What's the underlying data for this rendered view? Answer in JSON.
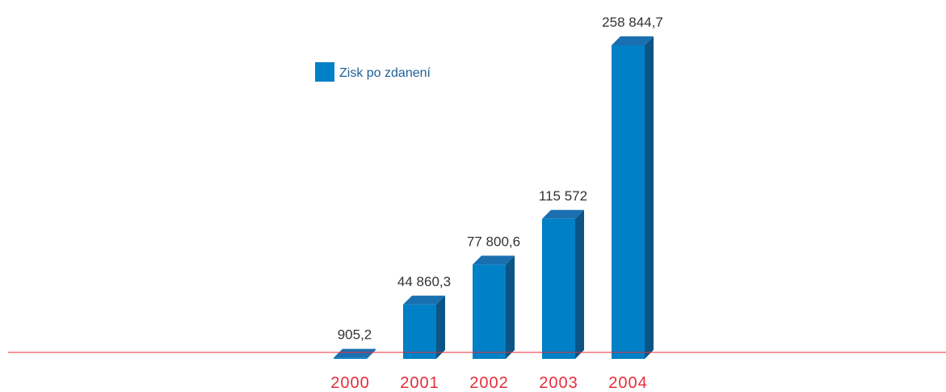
{
  "chart_data": {
    "type": "bar",
    "categories": [
      "2000",
      "2001",
      "2002",
      "2003",
      "2004"
    ],
    "series": [
      {
        "name": "Zisk po zdanení",
        "values": [
          905.2,
          44860.3,
          77800.6,
          115572,
          258844.7
        ]
      }
    ],
    "value_labels": [
      "905,2",
      "44 860,3",
      "77 800,6",
      "115 572",
      "258 844,7"
    ],
    "legend": {
      "label": "Zisk po zdanení",
      "placement": "top-left"
    },
    "ylim": [
      0,
      258844.7
    ],
    "grid": false
  },
  "colors": {
    "bar_front": "#0080c6",
    "bar_top": "#1a6fb0",
    "bar_side": "#0a5585",
    "baseline": "#e52d3a",
    "year_text": "#e52d3a",
    "value_text": "#333333",
    "legend_text": "#1d5f96"
  }
}
